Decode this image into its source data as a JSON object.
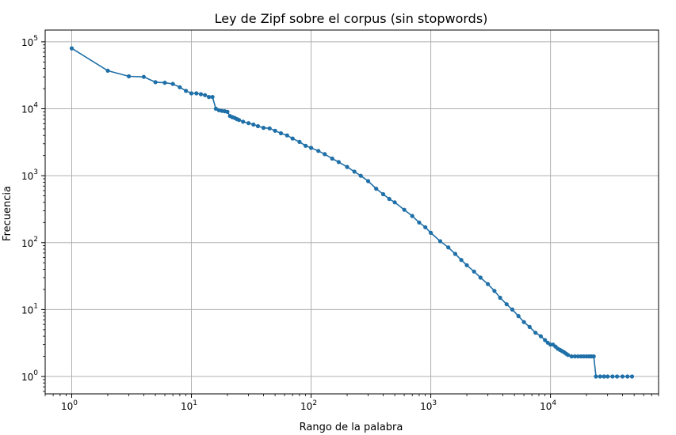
{
  "chart_data": {
    "type": "line",
    "title": "Ley de Zipf sobre el corpus (sin stopwords)",
    "xlabel": "Rango de la palabra",
    "ylabel": "Frecuencia",
    "xscale": "log",
    "yscale": "log",
    "xlim": [
      0.6,
      80000
    ],
    "ylim": [
      0.55,
      150000
    ],
    "grid": true,
    "color": "#1f6fa8",
    "xticks": [
      {
        "base": "10",
        "exp": "0",
        "value": 1
      },
      {
        "base": "10",
        "exp": "1",
        "value": 10
      },
      {
        "base": "10",
        "exp": "2",
        "value": 100
      },
      {
        "base": "10",
        "exp": "3",
        "value": 1000
      },
      {
        "base": "10",
        "exp": "4",
        "value": 10000
      }
    ],
    "yticks": [
      {
        "base": "10",
        "exp": "0",
        "value": 1
      },
      {
        "base": "10",
        "exp": "1",
        "value": 10
      },
      {
        "base": "10",
        "exp": "2",
        "value": 100
      },
      {
        "base": "10",
        "exp": "3",
        "value": 1000
      },
      {
        "base": "10",
        "exp": "4",
        "value": 10000
      },
      {
        "base": "10",
        "exp": "5",
        "value": 100000
      }
    ],
    "series": [
      {
        "x": [
          1,
          2,
          3,
          4,
          5,
          6,
          7,
          8,
          9,
          10,
          11,
          12,
          13,
          14,
          15,
          16,
          17,
          18,
          19,
          20,
          21,
          22,
          23,
          24,
          25,
          27,
          30,
          33,
          36,
          40,
          45,
          50,
          56,
          63,
          70,
          80,
          90,
          100,
          115,
          130,
          150,
          170,
          200,
          230,
          260,
          300,
          350,
          400,
          450,
          500,
          600,
          700,
          800,
          900,
          1000,
          1200,
          1400,
          1600,
          1800,
          2000,
          2300,
          2600,
          3000,
          3400,
          3800,
          4300,
          4800,
          5400,
          6000,
          6700,
          7500,
          8300,
          9000,
          9500,
          10000,
          10500,
          11000,
          11500,
          12000,
          12500,
          13000,
          13500,
          14000,
          15000,
          16000,
          17000,
          18000,
          19000,
          20000,
          21000,
          22000,
          23000,
          24000,
          26000,
          28000,
          30000,
          33000,
          36000,
          40000,
          44000,
          48000
        ],
        "y": [
          80000,
          37000,
          30500,
          30000,
          25000,
          24500,
          23500,
          21000,
          18500,
          17000,
          17000,
          16500,
          16000,
          15000,
          15000,
          10000,
          9500,
          9300,
          9200,
          9000,
          7800,
          7500,
          7300,
          7000,
          6800,
          6400,
          6100,
          5800,
          5500,
          5200,
          5100,
          4700,
          4300,
          4000,
          3600,
          3200,
          2800,
          2600,
          2350,
          2100,
          1800,
          1600,
          1350,
          1150,
          1000,
          830,
          640,
          530,
          450,
          400,
          310,
          250,
          200,
          170,
          140,
          105,
          85,
          68,
          55,
          46,
          37,
          30,
          24,
          19,
          15,
          12,
          10,
          8,
          6.5,
          5.5,
          4.5,
          4,
          3.5,
          3.2,
          3,
          3,
          2.8,
          2.6,
          2.5,
          2.4,
          2.3,
          2.2,
          2.1,
          2,
          2,
          2,
          2,
          2,
          2,
          2,
          2,
          2,
          1,
          1,
          1,
          1,
          1,
          1,
          1,
          1,
          1
        ]
      }
    ]
  }
}
